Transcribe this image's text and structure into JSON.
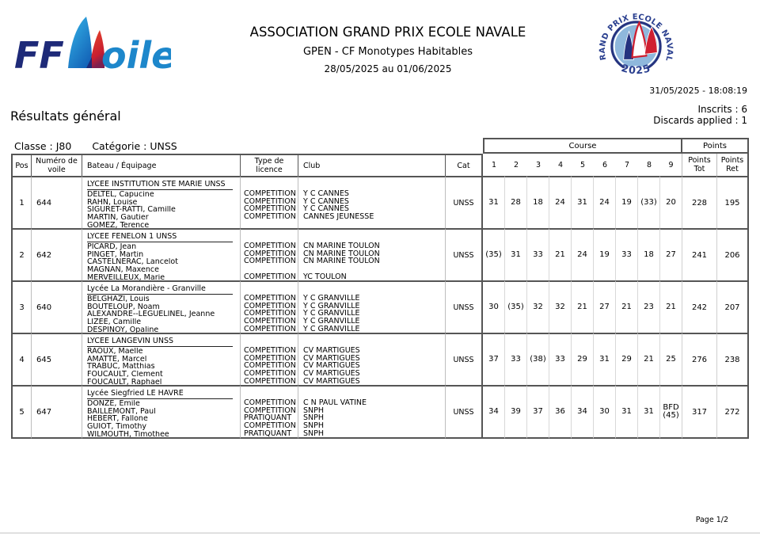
{
  "colors": {
    "ffvoile_navy": "#1e2a78",
    "ffvoile_blue": "#1d87cb",
    "sail_cyan": "#35b6e9",
    "sail_blue": "#1464b8",
    "sail_red": "#d6252e",
    "badge_disc_blue": "#8fb8dc",
    "badge_navy": "#26337f",
    "badge_red": "#cf2031"
  },
  "header": {
    "logo": {
      "ff": "FF",
      "oile": "oile"
    },
    "event_title": "ASSOCIATION GRAND PRIX ECOLE NAVALE",
    "event_subtitle": "GPEN - CF Monotypes Habitables",
    "event_dates": "28/05/2025 au 01/06/2025",
    "badge": {
      "ring_text": "GRAND PRIX ECOLE NAVALE",
      "year": "2025"
    },
    "generated_at": "31/05/2025 - 18:08:19"
  },
  "meta": {
    "results_title": "Résultats général",
    "inscrits": "Inscrits : 6",
    "discards": "Discards applied : 1",
    "class_label": "Classe : J80",
    "category_label": "Catégorie : UNSS",
    "page_number": "Page 1/2"
  },
  "table": {
    "band": {
      "course": "Course",
      "points": "Points"
    },
    "columns": [
      "Pos",
      "Numéro de\nvoile",
      "Bateau / Équipage",
      "Type de licence",
      "Club",
      "Cat",
      "1",
      "2",
      "3",
      "4",
      "5",
      "6",
      "7",
      "8",
      "9",
      "Points\nTot",
      "Points\nRet"
    ],
    "rows": [
      {
        "pos": "1",
        "sail": "644",
        "team": "LYCEE INSTITUTION STE MARIE UNSS",
        "cat": "UNSS",
        "crew": [
          {
            "name": "DELTEL, Capucine",
            "licence": "COMPETITION",
            "club": "Y C CANNES"
          },
          {
            "name": "RAHN, Louise",
            "licence": "COMPETITION",
            "club": "Y C CANNES"
          },
          {
            "name": "SIGURET-RATTI, Camille",
            "licence": "COMPETITION",
            "club": "Y C CANNES"
          },
          {
            "name": "MARTIN, Gautier",
            "licence": "COMPETITION",
            "club": "CANNES JEUNESSE"
          },
          {
            "name": "GOMEZ, Terence",
            "licence": "",
            "club": ""
          }
        ],
        "races": [
          "31",
          "28",
          "18",
          "24",
          "31",
          "24",
          "19",
          "(33)",
          "20"
        ],
        "points_tot": "228",
        "points_ret": "195"
      },
      {
        "pos": "2",
        "sail": "642",
        "team": "LYCEE FENELON 1 UNSS",
        "cat": "UNSS",
        "crew": [
          {
            "name": "PICARD, Jean",
            "licence": "COMPETITION",
            "club": "CN MARINE TOULON"
          },
          {
            "name": "PINGET, Martin",
            "licence": "COMPETITION",
            "club": "CN MARINE TOULON"
          },
          {
            "name": "CASTELNERAC, Lancelot",
            "licence": "COMPETITION",
            "club": "CN MARINE TOULON"
          },
          {
            "name": "MAGNAN, Maxence",
            "licence": "",
            "club": ""
          },
          {
            "name": "MERVEILLEUX, Marie",
            "licence": "COMPETITION",
            "club": "YC TOULON"
          }
        ],
        "races": [
          "(35)",
          "31",
          "33",
          "21",
          "24",
          "19",
          "33",
          "18",
          "27"
        ],
        "points_tot": "241",
        "points_ret": "206"
      },
      {
        "pos": "3",
        "sail": "640",
        "team": "Lycée La Morandière - Granville",
        "cat": "UNSS",
        "crew": [
          {
            "name": "BELGHAZI, Louis",
            "licence": "COMPETITION",
            "club": "Y C GRANVILLE"
          },
          {
            "name": "BOUTELOUP, Noam",
            "licence": "COMPETITION",
            "club": "Y C GRANVILLE"
          },
          {
            "name": "ALEXANDRE--LEGUELINEL, Jeanne",
            "licence": "COMPETITION",
            "club": "Y C GRANVILLE"
          },
          {
            "name": "LIZEE, Camille",
            "licence": "COMPETITION",
            "club": "Y C GRANVILLE"
          },
          {
            "name": "DESPINOY, Opaline",
            "licence": "COMPETITION",
            "club": "Y C GRANVILLE"
          }
        ],
        "races": [
          "30",
          "(35)",
          "32",
          "32",
          "21",
          "27",
          "21",
          "23",
          "21"
        ],
        "points_tot": "242",
        "points_ret": "207"
      },
      {
        "pos": "4",
        "sail": "645",
        "team": "LYCEE LANGEVIN UNSS",
        "cat": "UNSS",
        "crew": [
          {
            "name": "RAOUX, Maelle",
            "licence": "COMPETITION",
            "club": "CV MARTIGUES"
          },
          {
            "name": "AMATTE, Marcel",
            "licence": "COMPETITION",
            "club": "CV MARTIGUES"
          },
          {
            "name": "TRABUC, Matthias",
            "licence": "COMPETITION",
            "club": "CV MARTIGUES"
          },
          {
            "name": "FOUCAULT, Clement",
            "licence": "COMPETITION",
            "club": "CV MARTIGUES"
          },
          {
            "name": "FOUCAULT, Raphael",
            "licence": "COMPETITION",
            "club": "CV MARTIGUES"
          }
        ],
        "races": [
          "37",
          "33",
          "(38)",
          "33",
          "29",
          "31",
          "29",
          "21",
          "25"
        ],
        "points_tot": "276",
        "points_ret": "238"
      },
      {
        "pos": "5",
        "sail": "647",
        "team": "Lycée Siegfried LE HAVRE",
        "cat": "UNSS",
        "crew": [
          {
            "name": "DONZE, Emile",
            "licence": "COMPETITION",
            "club": "C N PAUL VATINE"
          },
          {
            "name": "BAILLEMONT, Paul",
            "licence": "COMPETITION",
            "club": "SNPH"
          },
          {
            "name": "HEBERT, Fallone",
            "licence": "PRATIQUANT",
            "club": "SNPH"
          },
          {
            "name": "GUIOT, Timothy",
            "licence": "COMPETITION",
            "club": "SNPH"
          },
          {
            "name": "WILMOUTH, Timothee",
            "licence": "PRATIQUANT",
            "club": "SNPH"
          }
        ],
        "races": [
          "34",
          "39",
          "37",
          "36",
          "34",
          "30",
          "31",
          "31",
          "BFD\n(45)"
        ],
        "points_tot": "317",
        "points_ret": "272"
      }
    ]
  }
}
